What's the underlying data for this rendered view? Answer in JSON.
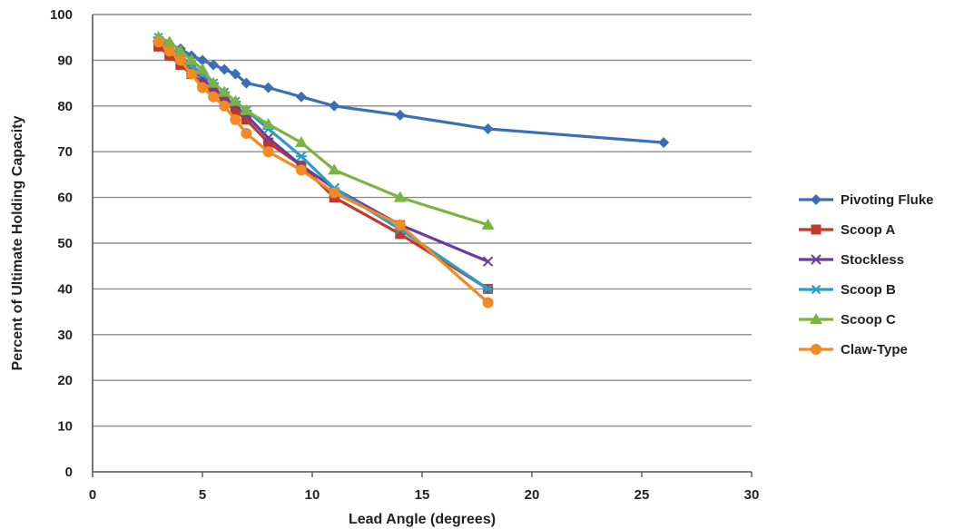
{
  "chart_data": {
    "type": "line",
    "title": "",
    "xlabel": "Lead Angle (degrees)",
    "ylabel": "Percent of Ultimate Holding Capacity",
    "xlim": [
      0,
      30
    ],
    "ylim": [
      0,
      100
    ],
    "xticks": [
      0,
      5,
      10,
      15,
      20,
      25,
      30
    ],
    "yticks": [
      0,
      10,
      20,
      30,
      40,
      50,
      60,
      70,
      80,
      90,
      100
    ],
    "grid": "horizontal",
    "legend": "right",
    "series": [
      {
        "name": "Pivoting Fluke",
        "color": "#3a6fb5",
        "marker": "diamond",
        "x": [
          3,
          3.5,
          4,
          4.5,
          5,
          5.5,
          6,
          6.5,
          7,
          8,
          9.5,
          11,
          14,
          18,
          26
        ],
        "y": [
          94,
          93.5,
          92.5,
          91,
          90,
          89,
          88,
          87,
          85,
          84,
          82,
          80,
          78,
          75,
          72
        ]
      },
      {
        "name": "Scoop A",
        "color": "#c0392b",
        "marker": "square",
        "x": [
          3,
          3.5,
          4,
          4.5,
          5,
          5.5,
          6,
          6.5,
          7,
          8,
          9.5,
          11,
          14,
          18
        ],
        "y": [
          93,
          91,
          89,
          87,
          85,
          83,
          81,
          79,
          77,
          72,
          67,
          60,
          52,
          40
        ]
      },
      {
        "name": "Stockless",
        "color": "#6a3d9a",
        "marker": "x",
        "x": [
          3,
          3.5,
          4,
          4.5,
          5,
          5.5,
          6,
          6.5,
          7,
          8,
          9.5,
          11,
          14,
          18
        ],
        "y": [
          94,
          92,
          90,
          88,
          86,
          84,
          82,
          80,
          78,
          73,
          67,
          62,
          54,
          46
        ]
      },
      {
        "name": "Scoop B",
        "color": "#2a9fc4",
        "marker": "asterisk",
        "x": [
          3,
          3.5,
          4,
          4.5,
          5,
          5.5,
          6,
          6.5,
          7,
          8,
          9.5,
          11,
          14,
          18
        ],
        "y": [
          95,
          93,
          91,
          89,
          87,
          85,
          83,
          81,
          79,
          75,
          69,
          62,
          53,
          40
        ]
      },
      {
        "name": "Scoop C",
        "color": "#7cb342",
        "marker": "triangle",
        "x": [
          3,
          3.5,
          4,
          4.5,
          5,
          5.5,
          6,
          6.5,
          7,
          8,
          9.5,
          11,
          14,
          18
        ],
        "y": [
          95,
          94,
          92,
          90,
          88,
          85,
          83,
          81,
          79,
          76,
          72,
          66,
          60,
          54
        ]
      },
      {
        "name": "Claw-Type",
        "color": "#f08a24",
        "marker": "circle",
        "x": [
          3,
          3.5,
          4,
          4.5,
          5,
          5.5,
          6,
          6.5,
          7,
          8,
          9.5,
          11,
          14,
          18
        ],
        "y": [
          94,
          92,
          90,
          87,
          84,
          82,
          80,
          77,
          74,
          70,
          66,
          61,
          54,
          37
        ]
      }
    ]
  }
}
